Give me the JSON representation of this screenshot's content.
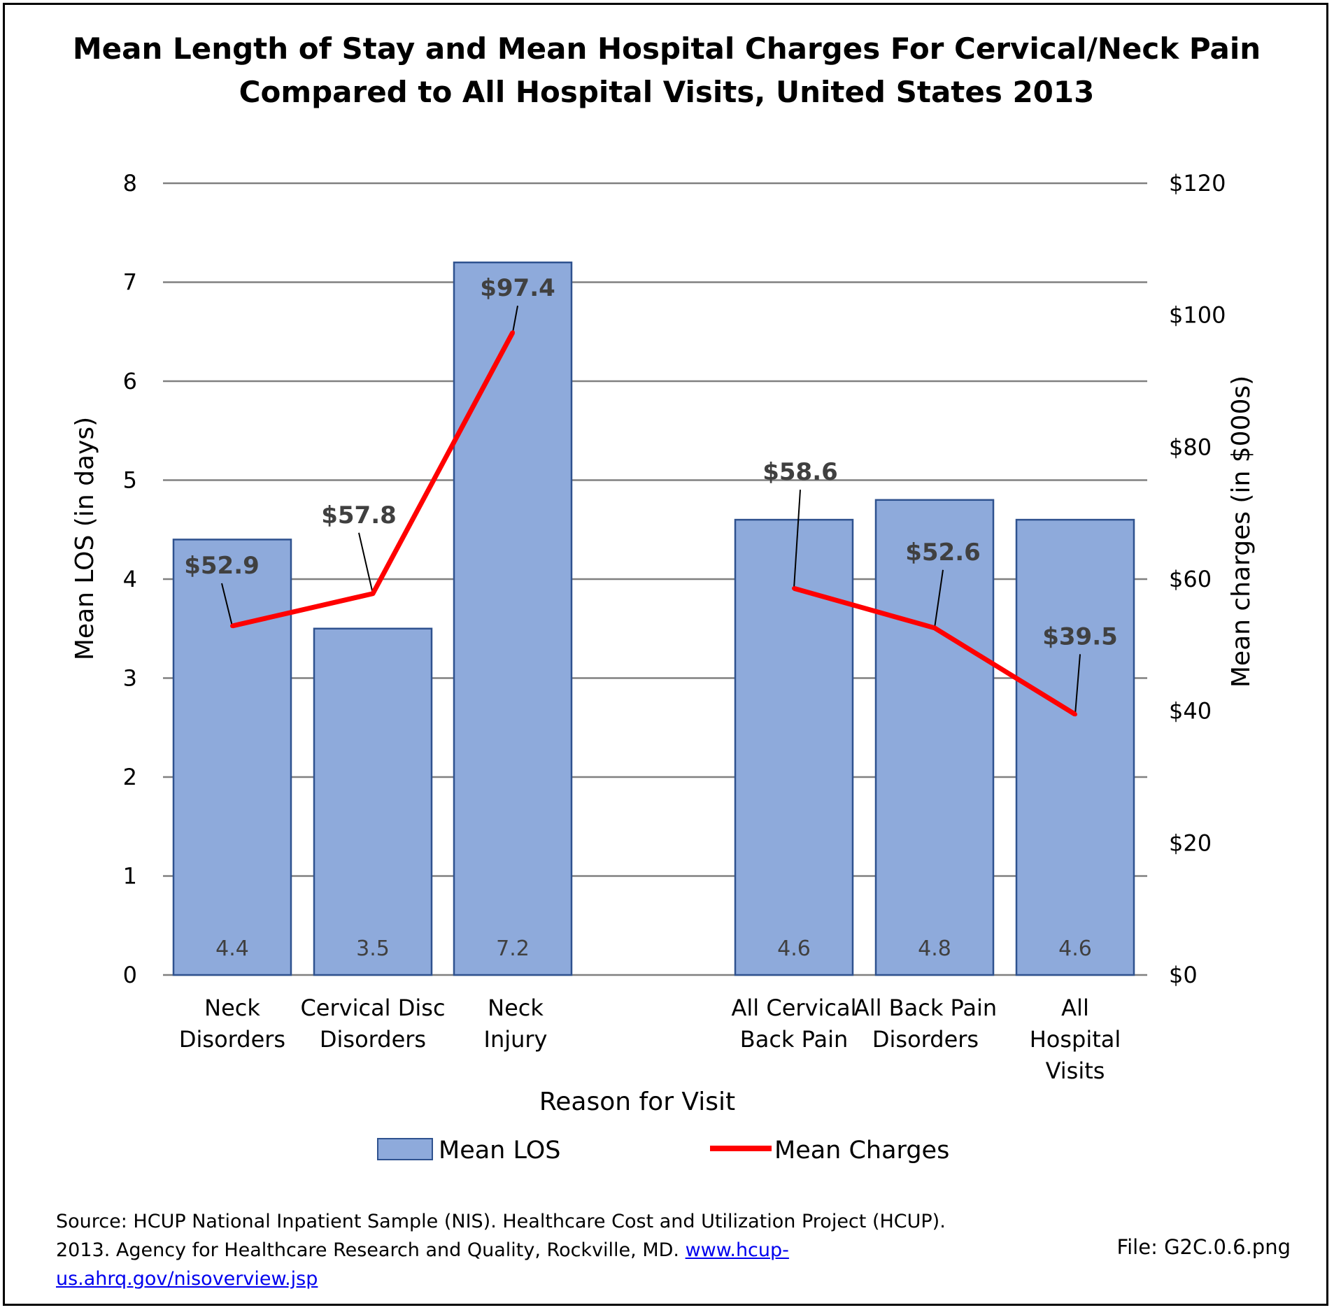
{
  "chart_data": {
    "type": "bar",
    "title_lines": [
      "Mean Length of Stay and Mean Hospital Charges For Cervical/Neck Pain",
      "Compared to All Hospital Visits, United States 2013"
    ],
    "xlabel": "Reason for Visit",
    "ylabel": "Mean LOS (in days)",
    "y2label": "Mean charges (in $000s)",
    "ylim": [
      0,
      8
    ],
    "y2lim": [
      0,
      120
    ],
    "y_ticks": [
      "0",
      "1",
      "2",
      "3",
      "4",
      "5",
      "6",
      "7",
      "8"
    ],
    "y2_ticks": [
      "$0",
      "$20",
      "$40",
      "$60",
      "$80",
      "$100",
      "$120"
    ],
    "grid": true,
    "legend_position": "bottom",
    "categories": [
      [
        "Neck",
        "Disorders"
      ],
      [
        "Cervical Disc",
        "Disorders"
      ],
      [
        "Neck",
        "Injury"
      ],
      [
        "All Cervical",
        "Back Pain"
      ],
      [
        "All Back Pain",
        "Disorders"
      ],
      [
        "All",
        "Hospital",
        "Visits"
      ]
    ],
    "series": [
      {
        "name": "Mean LOS",
        "kind": "bar",
        "axis": "left",
        "color": "#8eaadb",
        "values": [
          4.4,
          3.5,
          7.2,
          4.6,
          4.8,
          4.6
        ],
        "labels": [
          "4.4",
          "3.5",
          "7.2",
          "4.6",
          "4.8",
          "4.6"
        ]
      },
      {
        "name": "Mean Charges",
        "kind": "line",
        "axis": "right",
        "color": "#ff0000",
        "values": [
          52.9,
          57.8,
          97.4,
          58.6,
          52.6,
          39.5
        ],
        "labels": [
          "$52.9",
          "$57.8",
          "$97.4",
          "$58.6",
          "$52.6",
          "$39.5"
        ]
      }
    ]
  },
  "footer": {
    "source_text": "Source: HCUP National Inpatient Sample (NIS). Healthcare Cost and Utilization Project (HCUP). 2013. Agency for Healthcare Research and Quality, Rockville, MD. ",
    "link_text": "www.hcup-us.ahrq.gov/nisoverview.jsp",
    "file_label": "File: G2C.0.6.png"
  }
}
